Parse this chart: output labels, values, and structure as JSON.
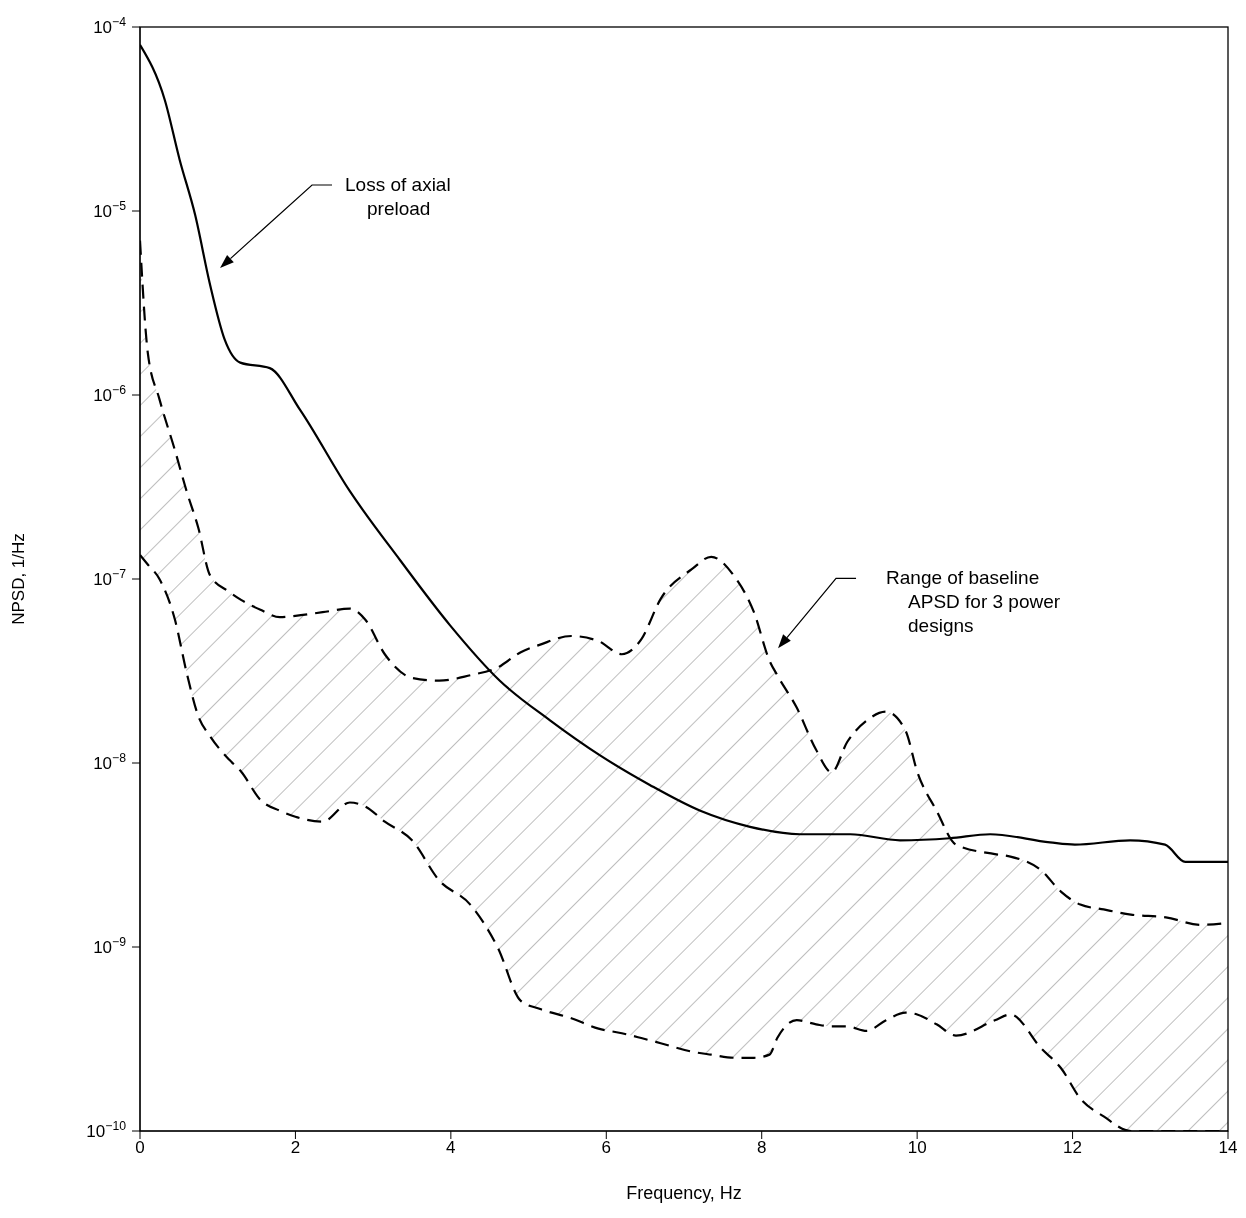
{
  "chart_data": {
    "type": "line",
    "xlabel": "Frequency, Hz",
    "ylabel": "NPSD, 1/Hz",
    "log": "y",
    "xlim": [
      0,
      14
    ],
    "xticks": [
      0,
      2,
      4,
      6,
      8,
      10,
      12,
      14
    ],
    "ylim": [
      1e-10,
      0.0001
    ],
    "yticks": [
      {
        "value": 1e-10,
        "label": "10$^{−10}$"
      },
      {
        "value": 1e-09,
        "label": "10$^{−9}$"
      },
      {
        "value": 1e-08,
        "label": "10$^{−8}$"
      },
      {
        "value": 1e-07,
        "label": "10$^{−7}$"
      },
      {
        "value": 1e-06,
        "label": "10$^{−6}$"
      },
      {
        "value": 1e-05,
        "label": "10$^{−5}$"
      },
      {
        "value": 0.0001,
        "label": "10$^{−4}$"
      }
    ],
    "annotations": [
      "Loss of axial preload",
      "Range of baseline APSD for 3 power designs"
    ],
    "series": [
      {
        "type": "line",
        "color": "#000000",
        "line_style": "solid",
        "x": [
          0,
          0.32,
          0.51,
          0.71,
          0.9,
          1.09,
          1.29,
          1.67,
          2.06,
          2.7,
          3.35,
          3.99,
          4.63,
          5.28,
          5.92,
          6.56,
          7.21,
          7.85,
          8.49,
          9.14,
          9.78,
          10.42,
          10.94,
          11.71,
          12.03,
          12.74,
          13.19,
          13.45,
          14
        ],
        "values": [
          8e-05,
          4e-05,
          1.9e-05,
          9.5e-06,
          4e-06,
          2e-06,
          1.5e-06,
          1.4e-06,
          8.3e-07,
          3e-07,
          1.26e-07,
          5.6e-08,
          2.8e-08,
          1.7e-08,
          1.1e-08,
          7.6e-09,
          5.5e-09,
          4.5e-09,
          4.1e-09,
          4.1e-09,
          3.8e-09,
          3.9e-09,
          4.1e-09,
          3.7e-09,
          3.6e-09,
          3.8e-09,
          3.6e-09,
          2.9e-09,
          2.9e-09
        ]
      },
      {
        "type": "area",
        "color": "#000000",
        "line_style": "dashed",
        "x": [
          0,
          0.1,
          0.25,
          0.45,
          0.6,
          0.75,
          0.9,
          1.15,
          1.3,
          1.55,
          1.8,
          2.0,
          2.35,
          2.7,
          2.9,
          3.15,
          3.5,
          3.85,
          4.25,
          4.6,
          4.9,
          5.15,
          5.55,
          5.9,
          6.2,
          6.45,
          6.7,
          7.1,
          7.35,
          7.65,
          7.9,
          8.1,
          8.2,
          8.45,
          8.7,
          8.9,
          9.1,
          9.35,
          9.6,
          9.85,
          10.0,
          10.25,
          10.5,
          11.0,
          11.2,
          11.6,
          11.85,
          12.1,
          12.4,
          12.75,
          13.2,
          13.65,
          14
        ],
        "values": [
          6.9e-06,
          1.7e-06,
          9.5e-07,
          5e-07,
          3e-07,
          1.9e-07,
          1.05e-07,
          8.5e-08,
          7.7e-08,
          6.8e-08,
          6.2e-08,
          6.3e-08,
          6.6e-08,
          6.9e-08,
          6e-08,
          3.9e-08,
          2.9e-08,
          2.8e-08,
          3e-08,
          3.3e-08,
          4e-08,
          4.4e-08,
          4.9e-08,
          4.6e-08,
          3.9e-08,
          4.7e-08,
          7.8e-08,
          1.13e-07,
          1.32e-07,
          1.03e-07,
          6.6e-08,
          3.6e-08,
          3e-08,
          2e-08,
          1.18e-08,
          8.9e-09,
          1.3e-08,
          1.7e-08,
          1.9e-08,
          1.5e-08,
          9e-09,
          5.5e-09,
          3.6e-09,
          3.2e-09,
          3.1e-09,
          2.6e-09,
          2e-09,
          1.7e-09,
          1.6e-09,
          1.5e-09,
          1.45e-09,
          1.32e-09,
          1.35e-09
        ]
      },
      {
        "type": "line",
        "color": "#000000",
        "line_style": "dashed",
        "x": [
          0,
          0.1,
          0.25,
          0.45,
          0.6,
          0.75,
          0.9,
          1.15,
          1.3,
          1.55,
          1.8,
          2.0,
          2.35,
          2.7,
          2.9,
          3.15,
          3.5,
          3.85,
          4.25,
          4.6,
          4.9,
          5.15,
          5.55,
          5.9,
          6.2,
          6.45,
          6.7,
          7.1,
          7.35,
          7.65,
          7.9,
          8.1,
          8.2,
          8.45,
          8.7,
          8.9,
          9.1,
          9.35,
          9.6,
          9.85,
          10.0,
          10.25,
          10.5,
          11.0,
          11.2,
          11.6,
          11.85,
          12.1,
          12.4,
          12.75,
          13.2,
          13.65,
          14
        ],
        "values": [
          1.35e-07,
          1.2e-07,
          1e-07,
          6e-08,
          3.1e-08,
          1.8e-08,
          1.4e-08,
          1.04e-08,
          9e-09,
          6.3e-09,
          5.5e-09,
          5.1e-09,
          4.8e-09,
          6.1e-09,
          5.8e-09,
          4.8e-09,
          3.8e-09,
          2.3e-09,
          1.7e-09,
          1e-09,
          5.1e-10,
          4.6e-10,
          4.1e-10,
          3.6e-10,
          3.4e-10,
          3.2e-10,
          3e-10,
          2.7e-10,
          2.6e-10,
          2.5e-10,
          2.5e-10,
          2.6e-10,
          3.2e-10,
          4e-10,
          3.8e-10,
          3.7e-10,
          3.7e-10,
          3.5e-10,
          4e-10,
          4.4e-10,
          4.3e-10,
          3.8e-10,
          3.3e-10,
          4e-10,
          4.3e-10,
          2.8e-10,
          2.2e-10,
          1.5e-10,
          1.2e-10,
          1e-10,
          1e-10,
          1e-10,
          1e-10
        ]
      }
    ]
  }
}
